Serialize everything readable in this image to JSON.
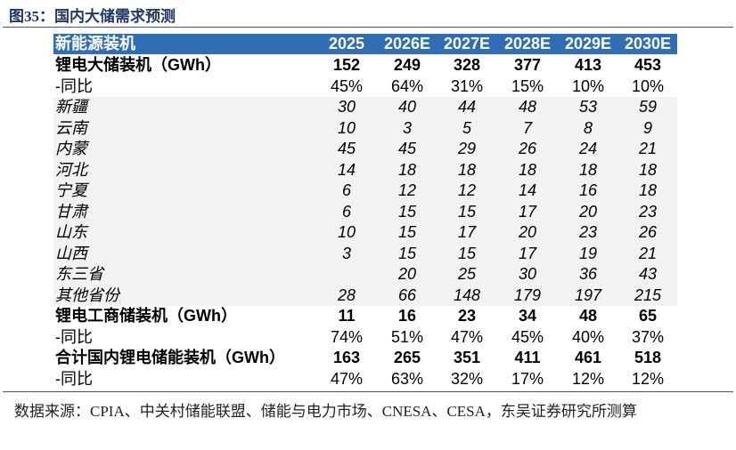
{
  "title": "图35：国内大储需求预测",
  "table": {
    "header": {
      "label": "新能源装机",
      "columns": [
        "2025",
        "2026E",
        "2027E",
        "2028E",
        "2029E",
        "2030E"
      ]
    },
    "rows": [
      {
        "label": "锂电大储装机（GWh）",
        "bold": true,
        "values": [
          152,
          249,
          328,
          377,
          413,
          453
        ]
      },
      {
        "label": "-同比",
        "values": [
          "45%",
          "64%",
          "31%",
          "15%",
          "10%",
          "10%"
        ]
      },
      {
        "label": "新疆",
        "italic": true,
        "shaded": true,
        "values": [
          30,
          40,
          44,
          48,
          53,
          59
        ]
      },
      {
        "label": "云南",
        "italic": true,
        "shaded": true,
        "values": [
          10,
          3,
          5,
          7,
          8,
          9
        ]
      },
      {
        "label": "内蒙",
        "italic": true,
        "shaded": true,
        "values": [
          45,
          45,
          29,
          26,
          24,
          21
        ]
      },
      {
        "label": "河北",
        "italic": true,
        "shaded": true,
        "values": [
          14,
          18,
          18,
          18,
          18,
          18
        ]
      },
      {
        "label": "宁夏",
        "italic": true,
        "shaded": true,
        "values": [
          6,
          12,
          12,
          14,
          16,
          18
        ]
      },
      {
        "label": "甘肃",
        "italic": true,
        "shaded": true,
        "values": [
          6,
          15,
          15,
          17,
          20,
          23
        ]
      },
      {
        "label": "山东",
        "italic": true,
        "shaded": true,
        "values": [
          10,
          15,
          17,
          20,
          23,
          26
        ]
      },
      {
        "label": "山西",
        "italic": true,
        "shaded": true,
        "values": [
          3,
          15,
          15,
          17,
          19,
          21
        ]
      },
      {
        "label": "东三省",
        "italic": true,
        "shaded": true,
        "values": [
          null,
          20,
          25,
          30,
          36,
          43
        ]
      },
      {
        "label": "其他省份",
        "italic": true,
        "shaded": true,
        "values": [
          28,
          66,
          148,
          179,
          197,
          215
        ]
      },
      {
        "label": "锂电工商储装机（GWh）",
        "bold": true,
        "values": [
          11,
          16,
          23,
          34,
          48,
          65
        ]
      },
      {
        "label": "-同比",
        "values": [
          "74%",
          "51%",
          "47%",
          "45%",
          "40%",
          "37%"
        ]
      },
      {
        "label": "合计国内锂电储能装机（GWh）",
        "bold": true,
        "values": [
          163,
          265,
          351,
          411,
          461,
          518
        ]
      },
      {
        "label": "-同比",
        "values": [
          "47%",
          "63%",
          "32%",
          "17%",
          "12%",
          "12%"
        ]
      }
    ]
  },
  "source": "数据来源：CPIA、中关村储能联盟、储能与电力市场、CNESA、CESA，东吴证券研究所测算"
}
